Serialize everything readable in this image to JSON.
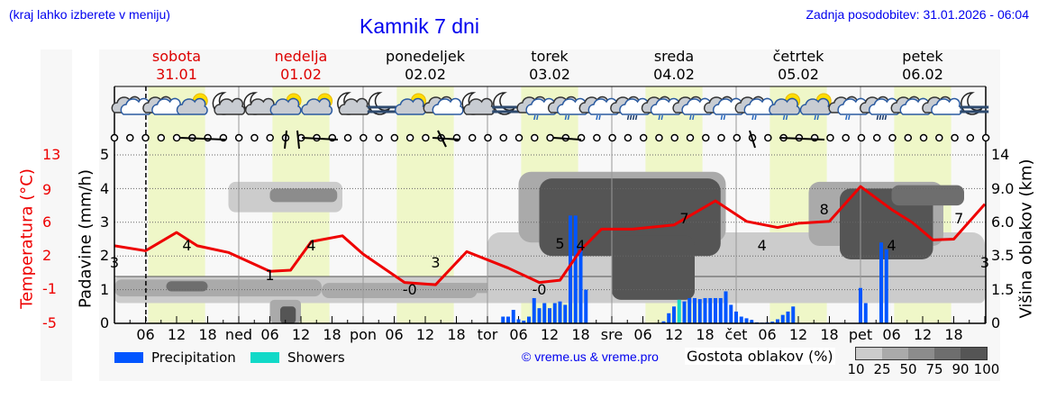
{
  "header": {
    "hint": "(kraj lahko izberete v meniju)",
    "title": "Kamnik 7 dni",
    "last_update": "Zadnja posodobitev: 31.01.2026 - 06:04"
  },
  "days": [
    {
      "name": "sobota",
      "date": "31.01",
      "color": "#dd0000"
    },
    {
      "name": "nedelja",
      "date": "01.02",
      "color": "#dd0000"
    },
    {
      "name": "ponedeljek",
      "date": "02.02",
      "color": "#000000"
    },
    {
      "name": "torek",
      "date": "03.02",
      "color": "#000000"
    },
    {
      "name": "sreda",
      "date": "04.02",
      "color": "#000000"
    },
    {
      "name": "četrtek",
      "date": "05.02",
      "color": "#000000"
    },
    {
      "name": "petek",
      "date": "06.02",
      "color": "#000000"
    }
  ],
  "axes": {
    "temp_label": "Temperatura (°C)",
    "temp_ticks": [
      "13",
      "9",
      "6",
      "2",
      "-1",
      "-5"
    ],
    "precip_label": "Padavine (mm/h)",
    "precip_ticks": [
      "5",
      "4",
      "3",
      "2",
      "1",
      "0"
    ],
    "cloud_label": "Višina oblakov (km)",
    "cloud_ticks": [
      "14",
      "9.0",
      "6.0",
      "3.5",
      "1.5",
      "0"
    ],
    "x_ticks": [
      "06",
      "12",
      "18",
      "ned",
      "06",
      "12",
      "18",
      "pon",
      "06",
      "12",
      "18",
      "tor",
      "06",
      "12",
      "18",
      "sre",
      "06",
      "12",
      "18",
      "čet",
      "06",
      "12",
      "18",
      "pet",
      "06",
      "12",
      "18"
    ]
  },
  "legend": {
    "precipitation": "Precipitation",
    "showers": "Showers",
    "precip_color": "#0055ff",
    "showers_color": "#11d9c8"
  },
  "credit": "© vreme.us & vreme.pro",
  "cloud_density": {
    "title": "Gostota oblakov (%)",
    "labels": [
      "10",
      "25",
      "50",
      "75",
      "90",
      "100"
    ],
    "colors": [
      "#cccccc",
      "#aaaaaa",
      "#8c8c8c",
      "#6e6e6e",
      "#555555"
    ]
  },
  "weather_icons": [
    "cloudy",
    "cloudy",
    "partly-sunny",
    "moon-cloud",
    "moon-cloud",
    "partly-sunny",
    "partly-sunny",
    "moon-cloud",
    "moon-fog",
    "partly-sunny",
    "cloudy",
    "moon-cloud",
    "moon-fog",
    "light-rain",
    "light-rain",
    "rain",
    "heavy-rain",
    "light-rain",
    "light-rain",
    "rain",
    "rain",
    "sun-rain",
    "sun-rain",
    "rain",
    "heavy-rain",
    "cloudy",
    "cloudy",
    "moon-fog"
  ],
  "chart_data": {
    "type": "line",
    "title": "Kamnik 7 dni",
    "xlabel": "",
    "ylabel": "Padavine (mm/h)",
    "ylim": [
      0,
      5
    ],
    "x_range_hours": [
      0,
      168
    ],
    "now_marker_hour": 6.07,
    "series": [
      {
        "name": "Temperatura (°C)",
        "color": "#ee0000",
        "points_hour_temp": [
          [
            0,
            3.2
          ],
          [
            6,
            2.6
          ],
          [
            12,
            4.8
          ],
          [
            16,
            3.2
          ],
          [
            22,
            2.4
          ],
          [
            30,
            0.6
          ],
          [
            34,
            0.7
          ],
          [
            38,
            3.7
          ],
          [
            44,
            4.4
          ],
          [
            48,
            2.2
          ],
          [
            56,
            -0.4
          ],
          [
            62,
            -0.6
          ],
          [
            68,
            2.5
          ],
          [
            76,
            0.9
          ],
          [
            82,
            -0.4
          ],
          [
            86,
            -0.2
          ],
          [
            90,
            2.7
          ],
          [
            94,
            5.2
          ],
          [
            100,
            5.2
          ],
          [
            108,
            5.7
          ],
          [
            116,
            8.0
          ],
          [
            122,
            6.1
          ],
          [
            128,
            5.4
          ],
          [
            132,
            5.9
          ],
          [
            138,
            6.1
          ],
          [
            144,
            9.4
          ],
          [
            150,
            7.2
          ],
          [
            154,
            6.0
          ],
          [
            158,
            3.9
          ],
          [
            162,
            4.0
          ],
          [
            168,
            7.7
          ],
          [
            174,
            4.6
          ]
        ]
      },
      {
        "name": "Precipitation",
        "color": "#0055ff",
        "unit": "mm/h",
        "bars_hour_value": [
          [
            75,
            0.2
          ],
          [
            76,
            0.2
          ],
          [
            77,
            0.4
          ],
          [
            78,
            0.12
          ],
          [
            79,
            0.08
          ],
          [
            80,
            0.2
          ],
          [
            81,
            0.75
          ],
          [
            82,
            0.45
          ],
          [
            83,
            0.6
          ],
          [
            84,
            0.45
          ],
          [
            85,
            0.6
          ],
          [
            86,
            0.65
          ],
          [
            87,
            0.55
          ],
          [
            88,
            3.2
          ],
          [
            89,
            3.2
          ],
          [
            90,
            2.3
          ],
          [
            91,
            1.0
          ],
          [
            106,
            0.06
          ],
          [
            107,
            0.3
          ],
          [
            108,
            0.5
          ],
          [
            110,
            0.65
          ],
          [
            111,
            0.75
          ],
          [
            112,
            0.75
          ],
          [
            113,
            0.72
          ],
          [
            114,
            0.75
          ],
          [
            115,
            0.75
          ],
          [
            116,
            0.75
          ],
          [
            117,
            0.75
          ],
          [
            118,
            0.95
          ],
          [
            119,
            0.55
          ],
          [
            120,
            0.35
          ],
          [
            121,
            0.2
          ],
          [
            122,
            0.15
          ],
          [
            123,
            0.1
          ],
          [
            124,
            0.03
          ],
          [
            125,
            0.02
          ],
          [
            126,
            0.03
          ],
          [
            127,
            0.05
          ],
          [
            128,
            0.12
          ],
          [
            129,
            0.25
          ],
          [
            130,
            0.35
          ],
          [
            131,
            0.5
          ],
          [
            144,
            1.05
          ],
          [
            145,
            0.6
          ],
          [
            148,
            2.4
          ],
          [
            149,
            2.2
          ]
        ]
      },
      {
        "name": "Showers",
        "color": "#11d9c8",
        "unit": "mm/h",
        "bars_hour_value": [
          [
            109,
            0.7
          ]
        ]
      }
    ],
    "temperature_labels": [
      {
        "hour": 0,
        "value": "3"
      },
      {
        "hour": 14,
        "value": "4"
      },
      {
        "hour": 30,
        "value": "1"
      },
      {
        "hour": 38,
        "value": "4"
      },
      {
        "hour": 57,
        "value": "-0"
      },
      {
        "hour": 62,
        "value": "3"
      },
      {
        "hour": 82,
        "value": "-0"
      },
      {
        "hour": 86,
        "value": "5"
      },
      {
        "hour": 90,
        "value": "4"
      },
      {
        "hour": 110,
        "value": "7"
      },
      {
        "hour": 125,
        "value": "4"
      },
      {
        "hour": 137,
        "value": "8"
      },
      {
        "hour": 150,
        "value": "4"
      },
      {
        "hour": 163,
        "value": "7"
      },
      {
        "hour": 168,
        "value": "3"
      }
    ],
    "cloud_layers_note": "grey density contours: low layer 0.6-1.4 mm scale across days, mid/high layers 2-4.3 on Feb 03-06"
  }
}
